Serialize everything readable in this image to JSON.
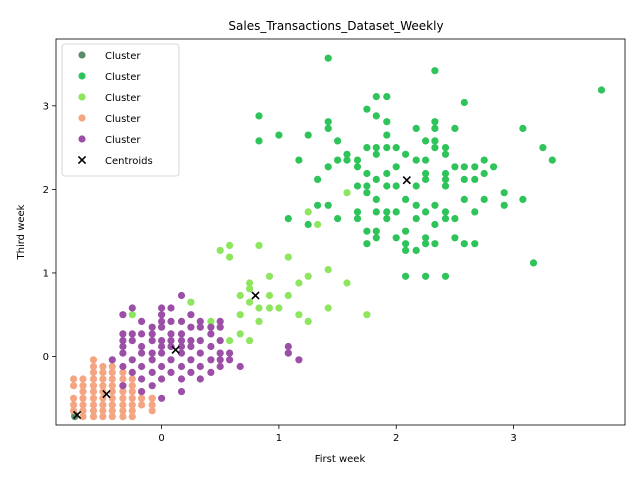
{
  "chart_data": {
    "type": "scatter",
    "title": "Sales_Transactions_Dataset_Weekly",
    "xlabel": "First week",
    "ylabel": "Third week",
    "xlim": [
      -0.9,
      3.95
    ],
    "ylim": [
      -0.82,
      3.8
    ],
    "xticks": [
      0,
      1,
      2,
      3
    ],
    "yticks": [
      0,
      1,
      2,
      3
    ],
    "grid": false,
    "legend_position": "top-left",
    "series": [
      {
        "name": "Cluster",
        "color": "#5b8c6a",
        "points": [
          [
            -0.74,
            -0.72
          ],
          [
            -0.74,
            -0.7
          ]
        ]
      },
      {
        "name": "Cluster",
        "color": "#2ec45a",
        "points": [
          [
            1.42,
            3.57
          ],
          [
            1.92,
            3.11
          ],
          [
            1.83,
            3.11
          ],
          [
            2.33,
            3.42
          ],
          [
            2.58,
            3.04
          ],
          [
            3.75,
            3.19
          ],
          [
            1.75,
            2.96
          ],
          [
            1.83,
            2.88
          ],
          [
            1.92,
            2.81
          ],
          [
            1.42,
            2.81
          ],
          [
            1.42,
            2.73
          ],
          [
            2.33,
            2.81
          ],
          [
            2.33,
            2.73
          ],
          [
            2.17,
            2.73
          ],
          [
            2.5,
            2.73
          ],
          [
            3.08,
            2.73
          ],
          [
            0.83,
            2.88
          ],
          [
            0.83,
            2.58
          ],
          [
            1.0,
            2.65
          ],
          [
            1.25,
            2.65
          ],
          [
            1.92,
            2.65
          ],
          [
            1.5,
            2.58
          ],
          [
            2.25,
            2.58
          ],
          [
            2.33,
            2.58
          ],
          [
            2.33,
            2.5
          ],
          [
            2.42,
            2.5
          ],
          [
            1.75,
            2.5
          ],
          [
            1.83,
            2.5
          ],
          [
            1.92,
            2.5
          ],
          [
            2.0,
            2.5
          ],
          [
            3.25,
            2.5
          ],
          [
            1.58,
            2.42
          ],
          [
            1.83,
            2.42
          ],
          [
            2.08,
            2.42
          ],
          [
            2.42,
            2.42
          ],
          [
            1.17,
            2.35
          ],
          [
            1.5,
            2.35
          ],
          [
            1.58,
            2.35
          ],
          [
            1.67,
            2.35
          ],
          [
            2.17,
            2.35
          ],
          [
            2.25,
            2.35
          ],
          [
            2.75,
            2.35
          ],
          [
            3.33,
            2.35
          ],
          [
            1.42,
            2.27
          ],
          [
            1.67,
            2.27
          ],
          [
            2.0,
            2.27
          ],
          [
            2.58,
            2.27
          ],
          [
            2.67,
            2.27
          ],
          [
            2.5,
            2.27
          ],
          [
            2.83,
            2.27
          ],
          [
            1.75,
            2.19
          ],
          [
            1.92,
            2.19
          ],
          [
            2.25,
            2.19
          ],
          [
            2.42,
            2.19
          ],
          [
            2.75,
            2.19
          ],
          [
            1.33,
            2.12
          ],
          [
            1.83,
            2.12
          ],
          [
            2.25,
            2.12
          ],
          [
            2.42,
            2.12
          ],
          [
            2.58,
            2.12
          ],
          [
            2.67,
            2.12
          ],
          [
            1.67,
            2.04
          ],
          [
            1.75,
            2.04
          ],
          [
            1.92,
            2.04
          ],
          [
            2.0,
            2.04
          ],
          [
            2.17,
            2.04
          ],
          [
            2.42,
            2.04
          ],
          [
            1.75,
            1.96
          ],
          [
            2.92,
            1.96
          ],
          [
            1.83,
            1.88
          ],
          [
            2.08,
            1.88
          ],
          [
            2.58,
            1.88
          ],
          [
            2.75,
            1.88
          ],
          [
            3.08,
            1.88
          ],
          [
            1.33,
            1.81
          ],
          [
            1.42,
            1.81
          ],
          [
            2.17,
            1.81
          ],
          [
            2.33,
            1.81
          ],
          [
            2.92,
            1.81
          ],
          [
            1.67,
            1.73
          ],
          [
            1.83,
            1.73
          ],
          [
            1.92,
            1.73
          ],
          [
            2.0,
            1.73
          ],
          [
            2.25,
            1.73
          ],
          [
            2.42,
            1.73
          ],
          [
            2.67,
            1.73
          ],
          [
            1.08,
            1.65
          ],
          [
            1.5,
            1.65
          ],
          [
            1.67,
            1.65
          ],
          [
            1.92,
            1.65
          ],
          [
            2.17,
            1.65
          ],
          [
            2.42,
            1.65
          ],
          [
            2.5,
            1.65
          ],
          [
            1.25,
            1.58
          ],
          [
            2.33,
            1.58
          ],
          [
            1.75,
            1.5
          ],
          [
            1.83,
            1.5
          ],
          [
            2.08,
            1.5
          ],
          [
            2.25,
            1.42
          ],
          [
            1.83,
            1.42
          ],
          [
            2.5,
            1.42
          ],
          [
            2.0,
            1.42
          ],
          [
            2.08,
            1.35
          ],
          [
            2.25,
            1.35
          ],
          [
            1.75,
            1.35
          ],
          [
            2.33,
            1.35
          ],
          [
            2.58,
            1.35
          ],
          [
            2.67,
            1.35
          ],
          [
            2.08,
            1.27
          ],
          [
            2.17,
            1.27
          ],
          [
            3.17,
            1.12
          ],
          [
            2.08,
            0.96
          ],
          [
            2.25,
            0.96
          ],
          [
            2.42,
            0.96
          ]
        ]
      },
      {
        "name": "Cluster",
        "color": "#8ee55e",
        "points": [
          [
            1.58,
            1.96
          ],
          [
            1.25,
            1.73
          ],
          [
            1.33,
            1.58
          ],
          [
            0.5,
            1.27
          ],
          [
            0.58,
            1.33
          ],
          [
            0.83,
            1.33
          ],
          [
            0.58,
            1.19
          ],
          [
            1.08,
            1.19
          ],
          [
            1.42,
            1.04
          ],
          [
            0.92,
            0.96
          ],
          [
            1.25,
            0.96
          ],
          [
            1.17,
            0.88
          ],
          [
            1.58,
            0.88
          ],
          [
            0.75,
            0.88
          ],
          [
            0.75,
            0.81
          ],
          [
            0.67,
            0.73
          ],
          [
            0.92,
            0.73
          ],
          [
            1.08,
            0.73
          ],
          [
            0.25,
            0.65
          ],
          [
            0.75,
            0.65
          ],
          [
            0.92,
            0.58
          ],
          [
            1.0,
            0.58
          ],
          [
            0.83,
            0.58
          ],
          [
            1.42,
            0.58
          ],
          [
            -0.25,
            0.5
          ],
          [
            0.67,
            0.5
          ],
          [
            1.17,
            0.5
          ],
          [
            1.75,
            0.5
          ],
          [
            0.83,
            0.42
          ],
          [
            1.25,
            0.42
          ],
          [
            0.42,
            0.42
          ],
          [
            0.67,
            0.27
          ],
          [
            0.58,
            0.19
          ],
          [
            0.75,
            0.19
          ],
          [
            1.08,
            0.04
          ]
        ]
      },
      {
        "name": "Cluster",
        "color": "#f4a582",
        "points": [
          [
            -0.58,
            -0.04
          ],
          [
            -0.58,
            -0.12
          ],
          [
            -0.5,
            -0.12
          ],
          [
            -0.42,
            -0.12
          ],
          [
            -0.33,
            -0.19
          ],
          [
            -0.42,
            -0.19
          ],
          [
            -0.5,
            -0.19
          ],
          [
            -0.58,
            -0.19
          ],
          [
            -0.67,
            -0.27
          ],
          [
            -0.58,
            -0.27
          ],
          [
            -0.5,
            -0.27
          ],
          [
            -0.42,
            -0.27
          ],
          [
            -0.33,
            -0.27
          ],
          [
            -0.25,
            -0.27
          ],
          [
            -0.67,
            -0.35
          ],
          [
            -0.58,
            -0.35
          ],
          [
            -0.5,
            -0.35
          ],
          [
            -0.42,
            -0.35
          ],
          [
            -0.33,
            -0.35
          ],
          [
            -0.25,
            -0.35
          ],
          [
            -0.75,
            -0.35
          ],
          [
            -0.67,
            -0.42
          ],
          [
            -0.58,
            -0.42
          ],
          [
            -0.5,
            -0.42
          ],
          [
            -0.42,
            -0.42
          ],
          [
            -0.33,
            -0.42
          ],
          [
            -0.25,
            -0.42
          ],
          [
            -0.75,
            -0.5
          ],
          [
            -0.67,
            -0.5
          ],
          [
            -0.58,
            -0.5
          ],
          [
            -0.5,
            -0.5
          ],
          [
            -0.42,
            -0.5
          ],
          [
            -0.33,
            -0.5
          ],
          [
            -0.25,
            -0.5
          ],
          [
            -0.17,
            -0.5
          ],
          [
            -0.08,
            -0.5
          ],
          [
            -0.75,
            -0.58
          ],
          [
            -0.67,
            -0.58
          ],
          [
            -0.58,
            -0.58
          ],
          [
            -0.5,
            -0.58
          ],
          [
            -0.42,
            -0.58
          ],
          [
            -0.33,
            -0.58
          ],
          [
            -0.25,
            -0.58
          ],
          [
            -0.17,
            -0.58
          ],
          [
            -0.08,
            -0.58
          ],
          [
            -0.75,
            -0.65
          ],
          [
            -0.67,
            -0.65
          ],
          [
            -0.58,
            -0.65
          ],
          [
            -0.5,
            -0.65
          ],
          [
            -0.42,
            -0.65
          ],
          [
            -0.33,
            -0.65
          ],
          [
            -0.25,
            -0.65
          ],
          [
            -0.08,
            -0.65
          ],
          [
            -0.67,
            -0.72
          ],
          [
            -0.58,
            -0.72
          ],
          [
            -0.5,
            -0.72
          ],
          [
            -0.42,
            -0.72
          ],
          [
            -0.33,
            -0.72
          ],
          [
            -0.25,
            -0.72
          ],
          [
            -0.75,
            -0.27
          ],
          [
            -0.17,
            -0.42
          ],
          [
            -0.08,
            -0.5
          ]
        ]
      },
      {
        "name": "Cluster",
        "color": "#9b4fa6",
        "points": [
          [
            -0.25,
            0.58
          ],
          [
            0.0,
            0.58
          ],
          [
            0.08,
            0.58
          ],
          [
            0.17,
            0.73
          ],
          [
            0.0,
            0.5
          ],
          [
            -0.33,
            0.5
          ],
          [
            0.25,
            0.5
          ],
          [
            -0.17,
            0.42
          ],
          [
            0.0,
            0.42
          ],
          [
            0.08,
            0.42
          ],
          [
            0.17,
            0.42
          ],
          [
            0.33,
            0.42
          ],
          [
            0.5,
            0.42
          ],
          [
            0.25,
            0.35
          ],
          [
            0.33,
            0.35
          ],
          [
            0.42,
            0.35
          ],
          [
            0.5,
            0.35
          ],
          [
            -0.08,
            0.35
          ],
          [
            0.0,
            0.35
          ],
          [
            -0.33,
            0.27
          ],
          [
            -0.25,
            0.27
          ],
          [
            -0.17,
            0.27
          ],
          [
            -0.08,
            0.27
          ],
          [
            0.08,
            0.27
          ],
          [
            0.17,
            0.27
          ],
          [
            0.42,
            0.27
          ],
          [
            -0.33,
            0.19
          ],
          [
            -0.25,
            0.19
          ],
          [
            -0.08,
            0.19
          ],
          [
            0.0,
            0.19
          ],
          [
            0.08,
            0.19
          ],
          [
            0.17,
            0.19
          ],
          [
            0.25,
            0.19
          ],
          [
            0.33,
            0.19
          ],
          [
            0.5,
            0.19
          ],
          [
            -0.33,
            0.12
          ],
          [
            -0.17,
            0.12
          ],
          [
            0.0,
            0.12
          ],
          [
            0.08,
            0.12
          ],
          [
            0.17,
            0.12
          ],
          [
            0.25,
            0.12
          ],
          [
            0.42,
            0.12
          ],
          [
            -0.33,
            0.04
          ],
          [
            -0.17,
            0.04
          ],
          [
            -0.08,
            0.04
          ],
          [
            0.0,
            0.04
          ],
          [
            0.17,
            0.04
          ],
          [
            0.33,
            0.04
          ],
          [
            0.5,
            0.04
          ],
          [
            0.58,
            0.04
          ],
          [
            -0.42,
            -0.04
          ],
          [
            -0.25,
            -0.04
          ],
          [
            -0.08,
            -0.04
          ],
          [
            0.08,
            -0.04
          ],
          [
            0.25,
            -0.04
          ],
          [
            0.42,
            -0.04
          ],
          [
            0.5,
            -0.04
          ],
          [
            0.58,
            -0.04
          ],
          [
            -0.33,
            -0.12
          ],
          [
            -0.17,
            -0.12
          ],
          [
            0.0,
            -0.12
          ],
          [
            0.17,
            -0.12
          ],
          [
            0.33,
            -0.12
          ],
          [
            0.5,
            -0.12
          ],
          [
            0.67,
            -0.12
          ],
          [
            -0.25,
            -0.19
          ],
          [
            -0.08,
            -0.19
          ],
          [
            0.08,
            -0.19
          ],
          [
            0.25,
            -0.19
          ],
          [
            0.42,
            -0.19
          ],
          [
            -0.17,
            -0.27
          ],
          [
            0.0,
            -0.27
          ],
          [
            0.17,
            -0.27
          ],
          [
            0.33,
            -0.27
          ],
          [
            -0.33,
            -0.35
          ],
          [
            -0.08,
            -0.35
          ],
          [
            0.17,
            -0.42
          ],
          [
            -0.17,
            -0.42
          ],
          [
            0.0,
            -0.5
          ],
          [
            1.08,
            0.12
          ],
          [
            1.08,
            0.04
          ],
          [
            1.17,
            -0.04
          ]
        ]
      }
    ],
    "centroids": {
      "name": "Centroids",
      "color": "#000000",
      "marker": "x",
      "points": [
        [
          -0.72,
          -0.7
        ],
        [
          2.09,
          2.11
        ],
        [
          0.8,
          0.73
        ],
        [
          -0.47,
          -0.45
        ],
        [
          0.12,
          0.08
        ]
      ]
    }
  }
}
